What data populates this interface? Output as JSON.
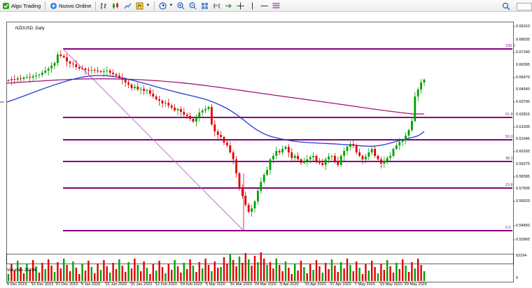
{
  "toolbar": {
    "algo_trading": "Algo Trading",
    "new_order": "Nuovo Ordine"
  },
  "chart": {
    "symbol": "NZDUSD, Daily",
    "volume_label": "Volumes 25404",
    "price_axis": [
      "0.69310",
      "0.67240",
      "0.65470",
      "0.63700",
      "0.61935",
      "0.60165",
      "0.58395",
      "0.56620",
      "0.54850",
      "0.53965"
    ],
    "price_axis_extra": [
      "0.68035",
      "0.66395",
      "0.64540",
      "0.62815",
      "0.61045",
      "0.59275",
      "0.57505"
    ],
    "volume_axis": [
      "52194",
      "0"
    ],
    "date_axis": [
      "4 Dec 2019",
      "16 Dec 2019",
      "27 Dec 2019",
      "9 Jan 2020",
      "21 Jan 2020",
      "31 Jan 2020",
      "12 Feb 2020",
      "24 Feb 2020",
      "5 Mar 2020",
      "16 Mar 2020",
      "24 Mar 2020",
      "3 Apr 2020",
      "15 Apr 2020",
      "27 Apr 2020",
      "7 May 2020",
      "19 May 2020",
      "29 May 2020"
    ],
    "fib_levels": [
      "100.0",
      "61.8",
      "50.0",
      "38.2",
      "23.6",
      "0.0"
    ],
    "colors": {
      "bull_candle": "#00a000",
      "bear_candle": "#e00000",
      "fib_line": "#800080",
      "ma_fast": "#1f3bd8",
      "ma_slow": "#a01070",
      "trendline": "#c060c0"
    }
  }
}
